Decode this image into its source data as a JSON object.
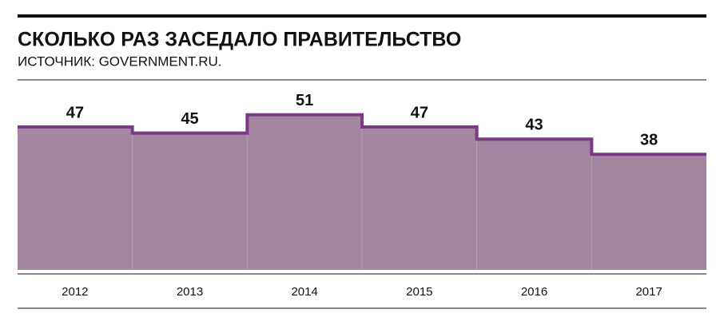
{
  "chart_data": {
    "type": "step-area",
    "title": "СКОЛЬКО РАЗ ЗАСЕДАЛО ПРАВИТЕЛЬСТВО",
    "subtitle": "ИСТОЧНИК: GOVERNMENT.RU.",
    "categories": [
      "2012",
      "2013",
      "2014",
      "2015",
      "2016",
      "2017"
    ],
    "values": [
      47,
      45,
      51,
      47,
      43,
      38
    ],
    "color": "#a3869f",
    "line_color": "#7b3a87",
    "ylim": [
      0,
      60
    ]
  }
}
